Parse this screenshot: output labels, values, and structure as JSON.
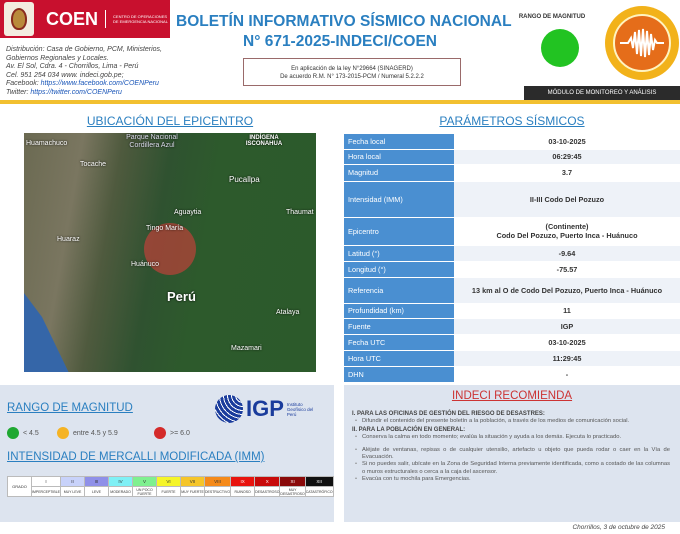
{
  "header": {
    "logo": {
      "brand": "COEN",
      "subtitle": "CENTRO DE OPERACIONES DE EMERGENCIA NACIONAL"
    },
    "distribution": [
      "Distribución: Casa de Gobierno, PCM, Ministerios,",
      "Gobiernos Regionales y Locales.",
      "Av. El Sol, Cdra. 4 - Chorrillos, Lima - Perú",
      "Cel. 951 254 034 www. indeci.gob.pe;"
    ],
    "facebook_label": "Facebook: ",
    "facebook_url": "https://www.facebook.com/COENPeru",
    "twitter_label": "Twitter: ",
    "twitter_url": "https://twitter.com/COENPeru",
    "title_line1": "BOLETÍN INFORMATIVO SÍSMICO NACIONAL",
    "title_line2": "N° 671-2025-INDECI/COEN",
    "law_line1": "En aplicación de la ley N°29664 (SINAGERD)",
    "law_line2": "De acuerdo R.M. N° 173-2015-PCM / Numeral 5.2.2.2",
    "magnitude_range_label": "RANGO DE MAGNITUD",
    "magnitude_color": "#22c322",
    "module": "MÓDULO DE MONITOREO Y ANÁLISIS"
  },
  "map": {
    "title": "UBICACIÓN DEL EPICENTRO",
    "labels": [
      "Huamachuco",
      "Parque Nacional Cordillera Azul",
      "INDÍGENA ISCONAHUA",
      "Tocache",
      "Pucallpa",
      "Aguaytia",
      "Thaumat",
      "Tingo María",
      "Huaraz",
      "Huánuco",
      "Perú",
      "Atalaya",
      "Mazamari"
    ]
  },
  "parameters": {
    "title": "PARÁMETROS SÍSMICOS",
    "rows": [
      {
        "key": "Fecha local",
        "value": "03-10-2025"
      },
      {
        "key": "Hora local",
        "value": "06:29:45"
      },
      {
        "key": "Magnitud",
        "value": "3.7"
      },
      {
        "key": "Intensidad (IMM)",
        "value": "II-III Codo Del Pozuzo"
      },
      {
        "key": "Epicentro",
        "value": "(Continente)",
        "value2": "Codo Del Pozuzo, Puerto Inca - Huánuco"
      },
      {
        "key": "Latitud (°)",
        "value": "-9.64"
      },
      {
        "key": "Longitud (°)",
        "value": "-75.57"
      },
      {
        "key": "Referencia",
        "value": "13 km al O de Codo Del Pozuzo, Puerto Inca - Huánuco"
      },
      {
        "key": "Profundidad (km)",
        "value": "11"
      },
      {
        "key": "Fuente",
        "value": "IGP"
      },
      {
        "key": "Fecha UTC",
        "value": "03-10-2025"
      },
      {
        "key": "Hora UTC",
        "value": "11:29:45"
      },
      {
        "key": "DHN",
        "value": "-"
      }
    ]
  },
  "legend": {
    "title": "RANGO DE MAGNITUD",
    "items": [
      {
        "label": "< 4.5",
        "color": "#1fa832"
      },
      {
        "label": "entre 4.5 y 5.9",
        "color": "#f5b324"
      },
      {
        "label": ">= 6.0",
        "color": "#d42a2a"
      }
    ],
    "igp": {
      "name": "IGP",
      "subtitle": "Instituto Geofísico del Perú"
    }
  },
  "mercalli": {
    "title": "INTENSIDAD DE MERCALLI MODIFICADA (IMM)",
    "grado": "GRADO",
    "levels": [
      {
        "roman": "I",
        "desc": "IMPERCEPTIBLE",
        "color": "#ffffff"
      },
      {
        "roman": "II",
        "desc": "MUY LEVE",
        "color": "#c8d2fa"
      },
      {
        "roman": "III",
        "desc": "LEVE",
        "color": "#8f90e8"
      },
      {
        "roman": "IV",
        "desc": "MODERADO",
        "color": "#7ff0f5"
      },
      {
        "roman": "V",
        "desc": "UN POCO FUERTE",
        "color": "#7ff090"
      },
      {
        "roman": "VI",
        "desc": "FUERTE",
        "color": "#f5f52a"
      },
      {
        "roman": "VII",
        "desc": "MUY FUERTE",
        "color": "#f5c52a"
      },
      {
        "roman": "VIII",
        "desc": "DESTRUCTIVO",
        "color": "#f58a1a"
      },
      {
        "roman": "IX",
        "desc": "RUINOSO",
        "color": "#e8140f"
      },
      {
        "roman": "X",
        "desc": "DESASTROSO",
        "color": "#c80a0a"
      },
      {
        "roman": "XI",
        "desc": "MUY DESASTROSO",
        "color": "#8a0a0a"
      },
      {
        "roman": "XII",
        "desc": "CATASTRÓFICO",
        "color": "#111111"
      }
    ]
  },
  "recommendations": {
    "title": "INDECI RECOMIENDA",
    "section1": "I. PARA LAS OFICINAS DE GESTIÓN DEL RIESGO DE DESASTRES:",
    "section1_items": [
      "Difundir el contenido del presente boletín a la población, a través de los medios de comunicación social."
    ],
    "section2": "II. PARA LA POBLACIÓN EN GENERAL:",
    "section2_items": [
      "Conserva la calma en todo momento; evalúa la situación y ayuda a los demás. Ejecuta lo practicado.",
      "Aléjate de ventanas, repisas o de cualquier utensilio, artefacto u objeto que pueda rodar o caer en la Vía de Evacuación.",
      "Si no puedes salir, ubícate en la Zona de Seguridad Interna previamente identificada, como a costado de las columnas o muros estructurales o cerca a la caja del ascensor.",
      "Evacúa con tu mochila para Emergencias."
    ]
  },
  "footer": "Chorrillos, 3 de octubre de 2025"
}
